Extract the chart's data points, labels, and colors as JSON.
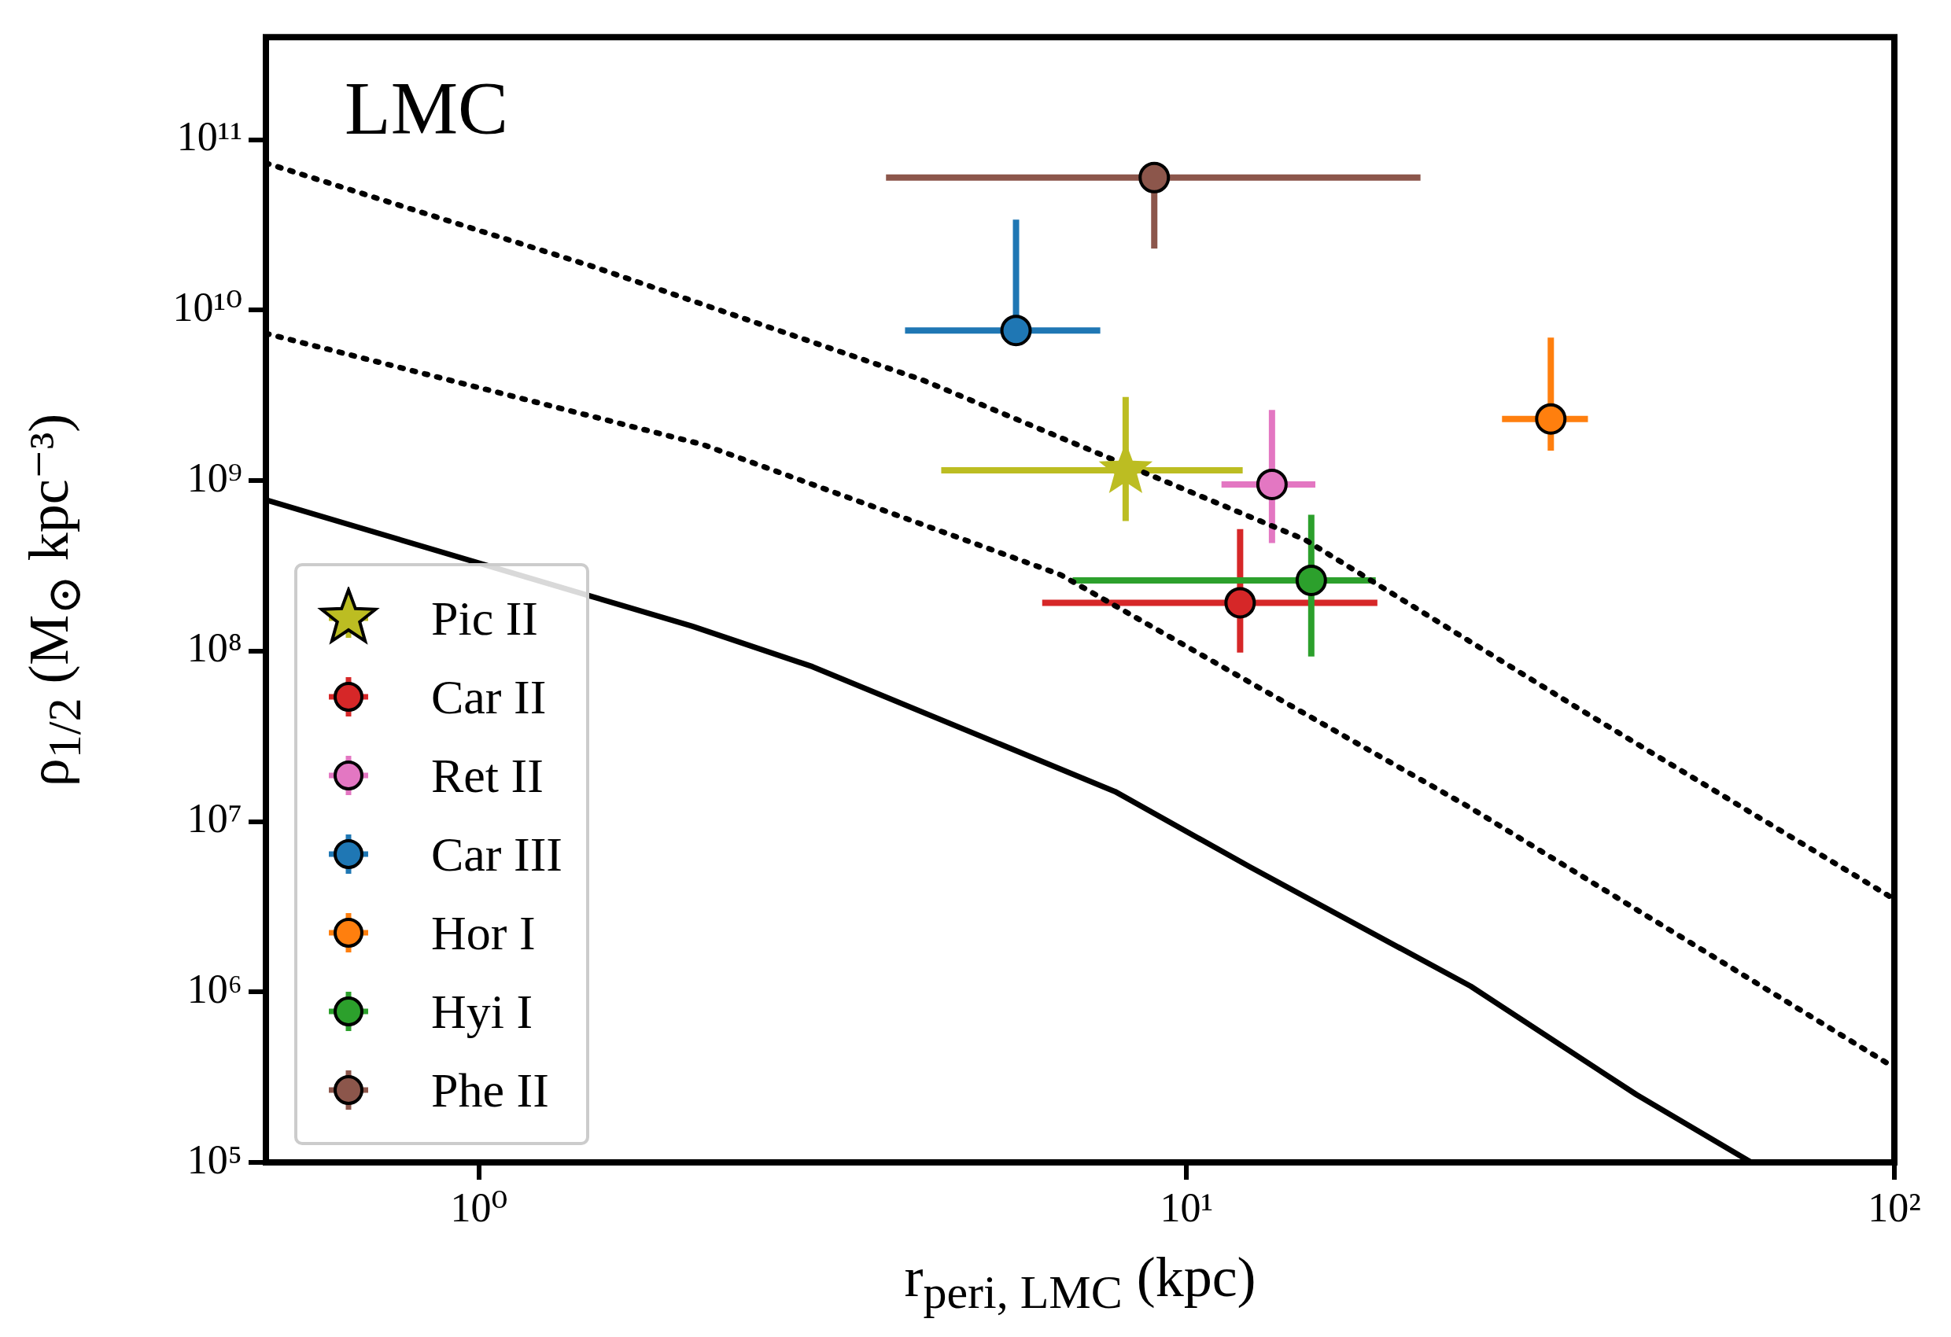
{
  "chart_data": {
    "type": "scatter",
    "xlabel": "r$_{peri, LMC}$ (kpc)",
    "ylabel": "ρ$_{1/2}$ (M$_{⊙}$ kpc⁻³)",
    "annotations": [
      "LMC"
    ],
    "log": "xy",
    "grid": false,
    "legend": "bottom left",
    "xlim": [
      0.5,
      100
    ],
    "ylim": [
      100000,
      400000000000
    ],
    "xticks": [
      {
        "value": 1,
        "label": "10⁰"
      },
      {
        "value": 10,
        "label": "10¹"
      },
      {
        "value": 100,
        "label": "10²"
      }
    ],
    "yticks": [
      {
        "value": 100000,
        "label": "10⁵"
      },
      {
        "value": 1000000,
        "label": "10⁶"
      },
      {
        "value": 10000000,
        "label": "10⁷"
      },
      {
        "value": 100000000,
        "label": "10⁸"
      },
      {
        "value": 1000000000,
        "label": "10⁹"
      },
      {
        "value": 10000000000,
        "label": "10¹⁰"
      },
      {
        "value": 100000000000,
        "label": "10¹¹"
      }
    ],
    "series": [
      {
        "type": "line",
        "color": "#000000",
        "line_style": "solid",
        "marker": "none",
        "x": [
          0.5,
          2,
          2.96,
          7.92,
          12.3,
          25.2,
          43.2,
          62.8
        ],
        "values": [
          770000000,
          140000000,
          81000000,
          15000000,
          5400000,
          1080000,
          250000,
          100000
        ]
      },
      {
        "type": "line",
        "color": "#000000",
        "line_style": "dotted",
        "marker": "none",
        "x": [
          0.5,
          1.445,
          4.23,
          14.7,
          36.1,
          100
        ],
        "values": [
          73000000000,
          18100000000,
          3900000000,
          450000000,
          45000000,
          3500000
        ]
      },
      {
        "type": "line",
        "color": "#000000",
        "line_style": "dotted",
        "marker": "none",
        "x": [
          0.5,
          2.07,
          6.64,
          25.2,
          100
        ],
        "values": [
          7300000000,
          1630000000,
          280000000,
          12000000,
          360000
        ]
      },
      {
        "name": "Pic II",
        "marker": "star",
        "color": "#bcbd22",
        "x": [
          8.2
        ],
        "values": [
          1150000000
        ],
        "errors": [
          [
            580000000,
            3100000000
          ]
        ],
        "xerrors": [
          [
            4.5,
            12
          ]
        ]
      },
      {
        "name": "Car II",
        "marker": "circle",
        "color": "#d62728",
        "x": [
          11.9
        ],
        "values": [
          192000000
        ],
        "errors": [
          [
            98000000,
            520000000
          ]
        ],
        "xerrors": [
          [
            6.25,
            18.6
          ]
        ]
      },
      {
        "name": "Ret II",
        "marker": "circle",
        "color": "#e377c2",
        "x": [
          13.2
        ],
        "values": [
          950000000
        ],
        "errors": [
          [
            430000000,
            2600000000
          ]
        ],
        "xerrors": [
          [
            11.2,
            15.2
          ]
        ]
      },
      {
        "name": "Car III",
        "marker": "circle",
        "color": "#1f77b4",
        "x": [
          5.74
        ],
        "values": [
          7600000000
        ],
        "errors": [
          [
            7600000000,
            34000000000
          ]
        ],
        "xerrors": [
          [
            4,
            7.55
          ]
        ]
      },
      {
        "name": "Hor I",
        "marker": "circle",
        "color": "#ff7f0e",
        "x": [
          32.7
        ],
        "values": [
          2300000000
        ],
        "errors": [
          [
            1500000000,
            6900000000
          ]
        ],
        "xerrors": [
          [
            27.9,
            36.9
          ]
        ]
      },
      {
        "name": "Hyi I",
        "marker": "circle",
        "color": "#2ca02c",
        "x": [
          15
        ],
        "values": [
          260000000
        ],
        "errors": [
          [
            93000000,
            630000000
          ]
        ],
        "xerrors": [
          [
            6.9,
            18.5
          ]
        ]
      },
      {
        "name": "Phe II",
        "marker": "circle",
        "color": "#8c564b",
        "x": [
          9
        ],
        "values": [
          60000000000
        ],
        "errors": [
          [
            23000000000,
            60000000000
          ]
        ],
        "xerrors": [
          [
            3.76,
            21.4
          ]
        ]
      }
    ]
  }
}
